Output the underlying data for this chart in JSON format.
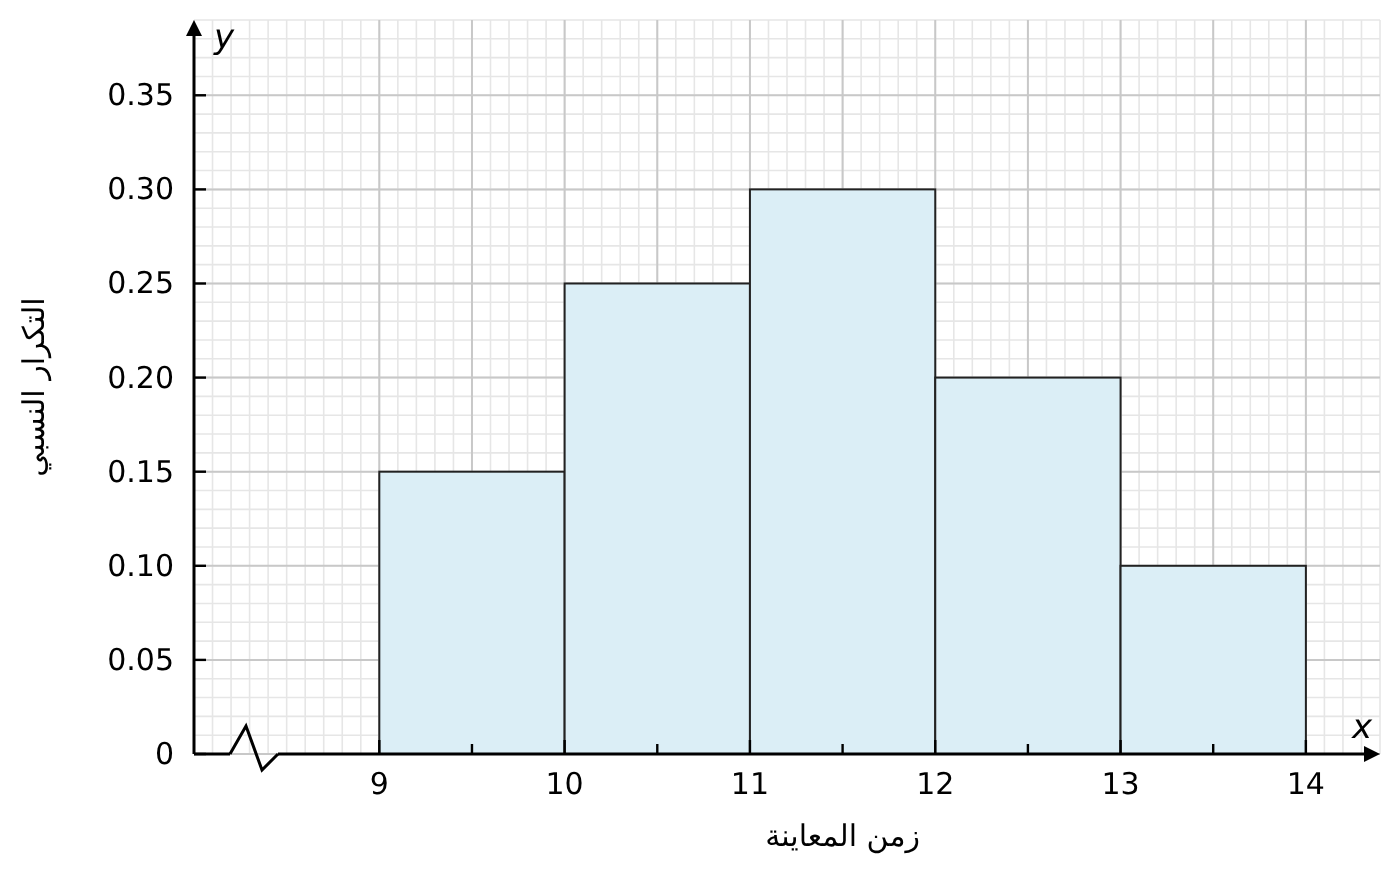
{
  "chart_data": {
    "type": "histogram",
    "xlabel": "زمن المعاينة",
    "ylabel": "التكرار النسبي",
    "annotations": [
      "y",
      "x"
    ],
    "bins": [
      9,
      10,
      11,
      12,
      13,
      14
    ],
    "values": [
      0.15,
      0.25,
      0.3,
      0.2,
      0.1
    ],
    "color": "#dbeef6",
    "xlim": [
      8,
      14.4
    ],
    "xticks": [
      9,
      {
        "value": 9.5,
        "label": null
      },
      10,
      {
        "value": 10.5,
        "label": null
      },
      11,
      {
        "value": 11.5,
        "label": null
      },
      12,
      {
        "value": 12.5,
        "label": null
      },
      13,
      {
        "value": 13.5,
        "label": null
      },
      14
    ],
    "ylim": [
      0,
      0.39
    ],
    "yticks": [
      {
        "value": 0,
        "label": "0"
      },
      {
        "value": 0.05,
        "label": "0.05"
      },
      {
        "value": 0.1,
        "label": "0.10"
      },
      {
        "value": 0.15,
        "label": "0.15"
      },
      {
        "value": 0.2,
        "label": "0.20"
      },
      {
        "value": 0.25,
        "label": "0.25"
      },
      {
        "value": 0.3,
        "label": "0.30"
      },
      {
        "value": 0.35,
        "label": "0.35"
      }
    ],
    "grid": true
  }
}
